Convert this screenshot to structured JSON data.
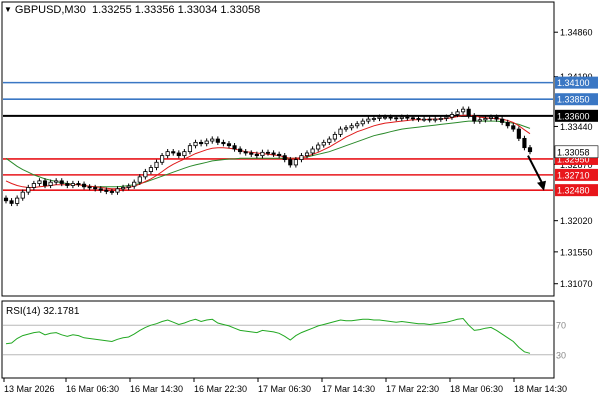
{
  "header": {
    "symbol": "GBPUSD,M30",
    "ohlc": "1.33255 1.33356 1.33034 1.33058"
  },
  "rsi": {
    "label": "RSI(14) 32.1781",
    "levels": [
      "70",
      "30"
    ]
  },
  "colors": {
    "blue_level": "#3a77c4",
    "black_level": "#000000",
    "red_level": "#e8161b",
    "ma_fast": "#e01b1b",
    "ma_slow": "#2b8a2b",
    "rsi_line": "#22a822",
    "candle": "#000000",
    "arrow": "#000000"
  },
  "chart_data": {
    "type": "candlestick",
    "symbol": "GBPUSD",
    "timeframe": "M30",
    "ylim": [
      1.309,
      1.353
    ],
    "y_ticks": [
      "1.34860",
      "1.34190",
      "1.33440",
      "1.32870",
      "1.32020",
      "1.31550",
      "1.31070"
    ],
    "x_ticks": [
      "13 Mar 2026",
      "16 Mar 06:30",
      "16 Mar 14:30",
      "16 Mar 22:30",
      "17 Mar 06:30",
      "17 Mar 14:30",
      "17 Mar 22:30",
      "18 Mar 06:30",
      "18 Mar 14:30"
    ],
    "current_price_label": "1.33058",
    "levels": [
      {
        "price": 1.341,
        "label": "1.34100",
        "color": "blue"
      },
      {
        "price": 1.3385,
        "label": "1.33850",
        "color": "blue"
      },
      {
        "price": 1.336,
        "label": "1.33600",
        "color": "black"
      },
      {
        "price": 1.3295,
        "label": "1.32950",
        "color": "red"
      },
      {
        "price": 1.3271,
        "label": "1.32710",
        "color": "red"
      },
      {
        "price": 1.3248,
        "label": "1.32480",
        "color": "red"
      }
    ],
    "close": [
      1.3232,
      1.3228,
      1.3236,
      1.3245,
      1.3252,
      1.3258,
      1.3262,
      1.3255,
      1.326,
      1.3262,
      1.3258,
      1.3255,
      1.3258,
      1.3257,
      1.3253,
      1.3252,
      1.325,
      1.3248,
      1.3246,
      1.3245,
      1.325,
      1.3252,
      1.3254,
      1.326,
      1.3268,
      1.3276,
      1.3282,
      1.329,
      1.33,
      1.3306,
      1.3304,
      1.33,
      1.3306,
      1.3315,
      1.332,
      1.3318,
      1.3322,
      1.3325,
      1.332,
      1.3318,
      1.3315,
      1.331,
      1.3306,
      1.3304,
      1.3302,
      1.33,
      1.3305,
      1.3304,
      1.3302,
      1.33,
      1.3294,
      1.3286,
      1.3294,
      1.33,
      1.3304,
      1.331,
      1.3316,
      1.332,
      1.3325,
      1.3332,
      1.334,
      1.3342,
      1.3345,
      1.3348,
      1.3352,
      1.3355,
      1.3356,
      1.3358,
      1.3358,
      1.3357,
      1.3356,
      1.3358,
      1.3357,
      1.3356,
      1.3355,
      1.3355,
      1.3354,
      1.3355,
      1.3356,
      1.3358,
      1.3362,
      1.3366,
      1.337,
      1.336,
      1.3352,
      1.3354,
      1.3356,
      1.3358,
      1.3355,
      1.335,
      1.3345,
      1.334,
      1.3326,
      1.3312,
      1.3306
    ],
    "ma_fast": [
      1.3262,
      1.3258,
      1.3255,
      1.3253,
      1.3252,
      1.3252,
      1.3253,
      1.3254,
      1.3255,
      1.3256,
      1.3256,
      1.3256,
      1.3256,
      1.3256,
      1.3255,
      1.3254,
      1.3253,
      1.3252,
      1.3251,
      1.325,
      1.325,
      1.3251,
      1.3252,
      1.3254,
      1.3257,
      1.3261,
      1.3265,
      1.327,
      1.3276,
      1.3282,
      1.3287,
      1.3291,
      1.3295,
      1.3299,
      1.3303,
      1.3306,
      1.3309,
      1.3311,
      1.3312,
      1.3312,
      1.3311,
      1.331,
      1.3308,
      1.3306,
      1.3305,
      1.3304,
      1.3303,
      1.3302,
      1.3301,
      1.33,
      1.3298,
      1.3296,
      1.3296,
      1.3297,
      1.3299,
      1.3302,
      1.3305,
      1.3309,
      1.3313,
      1.3318,
      1.3323,
      1.3328,
      1.3332,
      1.3336,
      1.3339,
      1.3342,
      1.3345,
      1.3347,
      1.3349,
      1.335,
      1.3351,
      1.3352,
      1.3353,
      1.3354,
      1.3354,
      1.3354,
      1.3355,
      1.3355,
      1.3355,
      1.3356,
      1.3357,
      1.3359,
      1.3361,
      1.3361,
      1.336,
      1.3358,
      1.3357,
      1.3356,
      1.3356,
      1.3355,
      1.3353,
      1.335,
      1.3345,
      1.3339,
      1.3333
    ],
    "ma_slow": [
      1.3296,
      1.329,
      1.3284,
      1.3279,
      1.3275,
      1.3271,
      1.3268,
      1.3265,
      1.3263,
      1.3261,
      1.3259,
      1.3258,
      1.3257,
      1.3256,
      1.3255,
      1.3254,
      1.3253,
      1.3253,
      1.3253,
      1.3253,
      1.3253,
      1.3254,
      1.3255,
      1.3256,
      1.3258,
      1.326,
      1.3263,
      1.3266,
      1.3269,
      1.3272,
      1.3275,
      1.3278,
      1.3281,
      1.3284,
      1.3286,
      1.3288,
      1.329,
      1.3292,
      1.3293,
      1.3294,
      1.3295,
      1.3295,
      1.3296,
      1.3296,
      1.3296,
      1.3296,
      1.3296,
      1.3296,
      1.3296,
      1.3296,
      1.3296,
      1.3296,
      1.3296,
      1.3297,
      1.3298,
      1.33,
      1.3302,
      1.3304,
      1.3306,
      1.3309,
      1.3312,
      1.3315,
      1.3318,
      1.3321,
      1.3324,
      1.3327,
      1.333,
      1.3332,
      1.3334,
      1.3336,
      1.3338,
      1.334,
      1.3341,
      1.3342,
      1.3343,
      1.3344,
      1.3345,
      1.3346,
      1.3347,
      1.3348,
      1.3349,
      1.335,
      1.3351,
      1.3352,
      1.3352,
      1.3352,
      1.3352,
      1.3352,
      1.3352,
      1.3351,
      1.335,
      1.3349,
      1.3347,
      1.3344,
      1.3341
    ],
    "rsi_ylim": [
      0,
      100
    ],
    "rsi_values": [
      45,
      46,
      52,
      56,
      58,
      60,
      61,
      57,
      59,
      60,
      57,
      55,
      57,
      56,
      53,
      52,
      51,
      50,
      49,
      48,
      51,
      53,
      54,
      58,
      63,
      67,
      70,
      72,
      75,
      77,
      74,
      71,
      73,
      76,
      78,
      75,
      77,
      78,
      73,
      71,
      69,
      66,
      63,
      62,
      61,
      60,
      63,
      62,
      61,
      59,
      55,
      50,
      56,
      60,
      63,
      66,
      69,
      71,
      73,
      75,
      77,
      76,
      76,
      77,
      78,
      78,
      77,
      77,
      76,
      75,
      74,
      75,
      74,
      73,
      72,
      72,
      71,
      72,
      73,
      74,
      76,
      78,
      79,
      70,
      63,
      64,
      66,
      67,
      63,
      58,
      53,
      48,
      40,
      34,
      32
    ]
  }
}
